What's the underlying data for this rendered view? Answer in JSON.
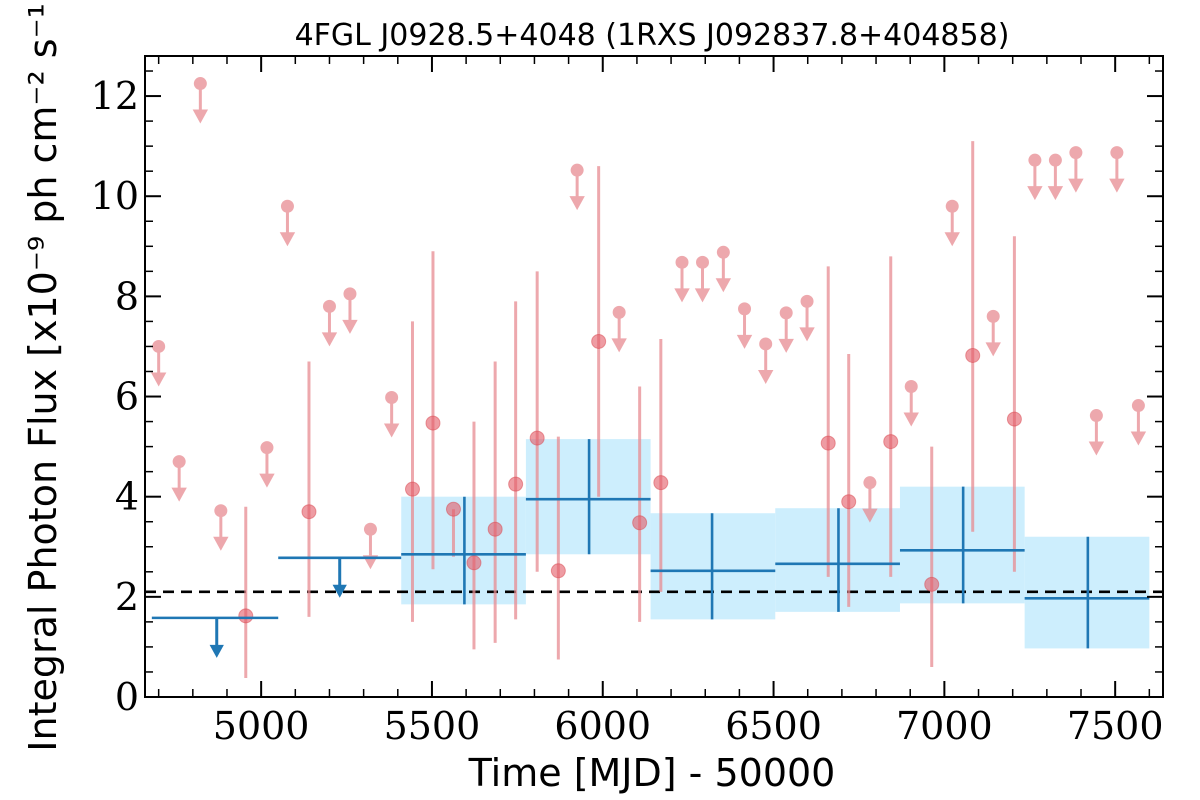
{
  "chart_data": {
    "type": "scatter",
    "title": "4FGL J0928.5+4048 (1RXS J092837.8+404858)",
    "xlabel": "Time [MJD] - 50000",
    "ylabel": "Integral Photon Flux [x10⁻⁹ ph cm⁻² s⁻¹]",
    "xlim": [
      4660,
      7640
    ],
    "ylim": [
      0,
      12.8
    ],
    "x_ticks": [
      "5000",
      "5500",
      "6000",
      "6500",
      "7000",
      "7500"
    ],
    "y_ticks": [
      "0",
      "2",
      "4",
      "6",
      "8",
      "10",
      "12"
    ],
    "average_flux": 2.1,
    "colors": {
      "monthly": "#e88c92",
      "yearly": "#1f77b4",
      "band": "#cdeefd",
      "average": "#000000"
    },
    "series": [
      {
        "kind": "detections",
        "points": [
          {
            "x": 4955,
            "y": 1.62,
            "lo": 0.38,
            "hi": 3.8
          },
          {
            "x": 5140,
            "y": 3.7,
            "lo": 1.6,
            "hi": 6.7
          },
          {
            "x": 5443,
            "y": 4.15,
            "lo": 1.5,
            "hi": 7.5
          },
          {
            "x": 5503,
            "y": 5.47,
            "lo": 2.55,
            "hi": 8.9
          },
          {
            "x": 5563,
            "y": 3.75,
            "lo": 2.8,
            "hi": 3.75
          },
          {
            "x": 5623,
            "y": 2.68,
            "lo": 0.95,
            "hi": 5.5
          },
          {
            "x": 5685,
            "y": 3.35,
            "lo": 1.08,
            "hi": 6.7
          },
          {
            "x": 5745,
            "y": 4.25,
            "lo": 1.55,
            "hi": 7.9
          },
          {
            "x": 5808,
            "y": 5.17,
            "lo": 2.5,
            "hi": 8.5
          },
          {
            "x": 5870,
            "y": 2.52,
            "lo": 0.75,
            "hi": 5.2
          },
          {
            "x": 5988,
            "y": 7.1,
            "lo": 4.0,
            "hi": 10.6
          },
          {
            "x": 6108,
            "y": 3.48,
            "lo": 1.5,
            "hi": 6.2
          },
          {
            "x": 6170,
            "y": 4.28,
            "lo": 2.1,
            "hi": 7.15
          },
          {
            "x": 6660,
            "y": 5.07,
            "lo": 2.4,
            "hi": 8.6
          },
          {
            "x": 6720,
            "y": 3.9,
            "lo": 1.8,
            "hi": 6.85
          },
          {
            "x": 6843,
            "y": 5.1,
            "lo": 2.4,
            "hi": 8.8
          },
          {
            "x": 6963,
            "y": 2.25,
            "lo": 0.6,
            "hi": 5.0
          },
          {
            "x": 7083,
            "y": 6.82,
            "lo": 3.3,
            "hi": 11.1
          },
          {
            "x": 7205,
            "y": 5.55,
            "lo": 2.5,
            "hi": 9.2
          }
        ]
      },
      {
        "kind": "upper_limits",
        "points": [
          {
            "x": 4700,
            "y": 7.0
          },
          {
            "x": 4760,
            "y": 4.7
          },
          {
            "x": 4822,
            "y": 12.25
          },
          {
            "x": 4882,
            "y": 3.72
          },
          {
            "x": 5017,
            "y": 4.98
          },
          {
            "x": 5077,
            "y": 9.8
          },
          {
            "x": 5200,
            "y": 7.8
          },
          {
            "x": 5260,
            "y": 8.05
          },
          {
            "x": 5320,
            "y": 3.35
          },
          {
            "x": 5382,
            "y": 5.98
          },
          {
            "x": 5925,
            "y": 10.52
          },
          {
            "x": 6048,
            "y": 7.68
          },
          {
            "x": 6232,
            "y": 8.68
          },
          {
            "x": 6292,
            "y": 8.68
          },
          {
            "x": 6353,
            "y": 8.88
          },
          {
            "x": 6415,
            "y": 7.75
          },
          {
            "x": 6477,
            "y": 7.05
          },
          {
            "x": 6537,
            "y": 7.67
          },
          {
            "x": 6598,
            "y": 7.9
          },
          {
            "x": 6782,
            "y": 4.28
          },
          {
            "x": 6903,
            "y": 6.2
          },
          {
            "x": 7023,
            "y": 9.8
          },
          {
            "x": 7143,
            "y": 7.6
          },
          {
            "x": 7265,
            "y": 10.72
          },
          {
            "x": 7325,
            "y": 10.72
          },
          {
            "x": 7385,
            "y": 10.87
          },
          {
            "x": 7445,
            "y": 5.62
          },
          {
            "x": 7505,
            "y": 10.87
          },
          {
            "x": 7568,
            "y": 5.82
          }
        ]
      },
      {
        "kind": "yearly_upper_limits",
        "points": [
          {
            "x0": 4680,
            "x1": 5050,
            "x": 4870,
            "y": 1.58
          },
          {
            "x0": 5050,
            "x1": 5410,
            "x": 5230,
            "y": 2.78
          }
        ]
      },
      {
        "kind": "yearly_detections",
        "points": [
          {
            "x0": 5410,
            "x1": 5775,
            "x": 5595,
            "y": 2.85,
            "lo": 1.85,
            "hi": 4.0
          },
          {
            "x0": 5775,
            "x1": 6140,
            "x": 5960,
            "y": 3.95,
            "lo": 2.85,
            "hi": 5.15
          },
          {
            "x0": 6140,
            "x1": 6505,
            "x": 6320,
            "y": 2.52,
            "lo": 1.55,
            "hi": 3.67
          },
          {
            "x0": 6505,
            "x1": 6870,
            "x": 6690,
            "y": 2.66,
            "lo": 1.7,
            "hi": 3.77
          },
          {
            "x0": 6870,
            "x1": 7235,
            "x": 7055,
            "y": 2.93,
            "lo": 1.87,
            "hi": 4.2
          },
          {
            "x0": 7235,
            "x1": 7600,
            "x": 7420,
            "y": 1.97,
            "lo": 0.97,
            "hi": 3.2
          }
        ]
      }
    ]
  }
}
